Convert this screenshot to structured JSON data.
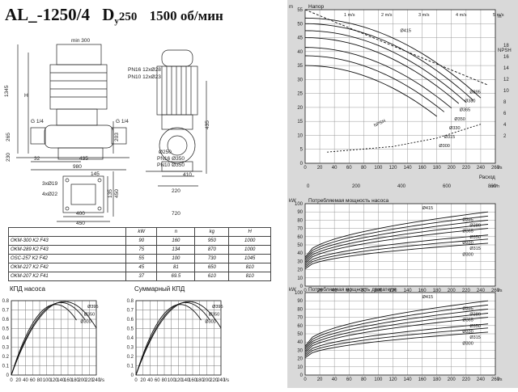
{
  "title": {
    "model": "AL_-1250/4",
    "dn": "D",
    "dn_sub": "y",
    "dn_value": "250",
    "speed": "1500 об/мин"
  },
  "drawing": {
    "dims": [
      "min 300",
      "1345",
      "H",
      "G 1/4",
      "G 1/4",
      "265",
      "230",
      "32",
      "435",
      "980",
      "145",
      "3xØ19",
      "4xØ22",
      "400",
      "450",
      "220",
      "410",
      "PN16 12xØ28",
      "PN10 12xØ23",
      "Ø250",
      "PN16 Ø350",
      "PN10 Ø350",
      "203",
      "435",
      "135",
      "450",
      "720"
    ]
  },
  "table": {
    "headers": [
      "",
      "kW",
      "n",
      "kg",
      "H"
    ],
    "rows": [
      [
        "OKM-300 K2 F43",
        "90",
        "160",
        "950",
        "1000"
      ],
      [
        "OKM-289 K2 F43",
        "75",
        "134",
        "870",
        "1000"
      ],
      [
        "OSC-257 K2 F42",
        "55",
        "100",
        "730",
        "1045"
      ],
      [
        "OKM-227 K2 F42",
        "45",
        "81",
        "650",
        "810"
      ],
      [
        "OKM-207 K2 F41",
        "37",
        "69.5",
        "610",
        "810"
      ]
    ]
  },
  "charts": {
    "pump_eff": {
      "title": "КПД насоса",
      "yticks": [
        "0",
        "0.1",
        "0.2",
        "0.3",
        "0.4",
        "0.5",
        "0.6",
        "0.7",
        "0.8"
      ],
      "xticks": [
        "0",
        "20",
        "40",
        "60",
        "80",
        "100",
        "120",
        "140",
        "160",
        "180",
        "200",
        "220",
        "240"
      ],
      "xunit": "l/s",
      "curve_labels": [
        "Ø395",
        "Ø350",
        "Ø300"
      ]
    },
    "total_eff": {
      "title": "Суммарный КПД",
      "yticks": [
        "0",
        "0.1",
        "0.2",
        "0.3",
        "0.4",
        "0.5",
        "0.6",
        "0.7",
        "0.8"
      ],
      "xticks": [
        "0",
        "20",
        "40",
        "60",
        "80",
        "100",
        "120",
        "140",
        "160",
        "180",
        "200",
        "220",
        "240"
      ],
      "xunit": "l/s",
      "curve_labels": [
        "Ø395",
        "Ø350",
        "Ø300"
      ]
    },
    "head": {
      "title": "Напор",
      "y_unit": "m",
      "yticks": [
        "0",
        "5",
        "10",
        "15",
        "20",
        "25",
        "30",
        "35",
        "40",
        "45",
        "50",
        "55"
      ],
      "npsh_label": "NPSH",
      "npsh_unit": "m",
      "npsh_ticks": [
        "2",
        "4",
        "6",
        "8",
        "10",
        "12",
        "14",
        "16",
        "18"
      ],
      "velocity_labels": [
        "1 m/s",
        "2 m/s",
        "3 m/s",
        "4 m/s",
        "5 m/s"
      ],
      "xticks_ls": [
        "0",
        "20",
        "40",
        "60",
        "80",
        "100",
        "120",
        "140",
        "160",
        "180",
        "200",
        "220",
        "240",
        "260"
      ],
      "xunit_ls": "l/s",
      "xlabel": "Расход",
      "xticks_m3h": [
        "0",
        "200",
        "400",
        "600",
        "800"
      ],
      "xunit_m3h": "m³/h",
      "diameters": [
        "Ø395",
        "Ø380",
        "Ø365",
        "Ø350",
        "Ø330",
        "Ø315",
        "Ø300"
      ],
      "top_label": "Ø415",
      "npsh_curve_label": "NPSH"
    },
    "pump_power": {
      "title": "Потребляемая мощность насоса",
      "y_unit": "kW",
      "yticks": [
        "0",
        "10",
        "20",
        "30",
        "40",
        "50",
        "60",
        "70",
        "80",
        "90",
        "100"
      ],
      "xticks": [
        "0",
        "20",
        "40",
        "60",
        "80",
        "100",
        "120",
        "140",
        "160",
        "180",
        "200",
        "220",
        "240",
        "260"
      ],
      "xunit": "l/s",
      "labels": [
        "Ø415",
        "Ø395",
        "Ø380",
        "Ø365",
        "Ø350",
        "Ø330",
        "Ø315",
        "Ø300"
      ]
    },
    "motor_power": {
      "title": "Потребляемая мощность двигателя",
      "y_unit": "kW",
      "yticks": [
        "0",
        "10",
        "20",
        "30",
        "40",
        "50",
        "60",
        "70",
        "80",
        "90",
        "100"
      ],
      "xticks": [
        "0",
        "20",
        "40",
        "60",
        "80",
        "100",
        "120",
        "140",
        "160",
        "180",
        "200",
        "220",
        "240",
        "260"
      ],
      "xunit": "l/s",
      "labels": [
        "Ø415",
        "Ø395",
        "Ø380",
        "Ø365",
        "Ø350",
        "Ø330",
        "Ø315",
        "Ø300"
      ]
    }
  }
}
